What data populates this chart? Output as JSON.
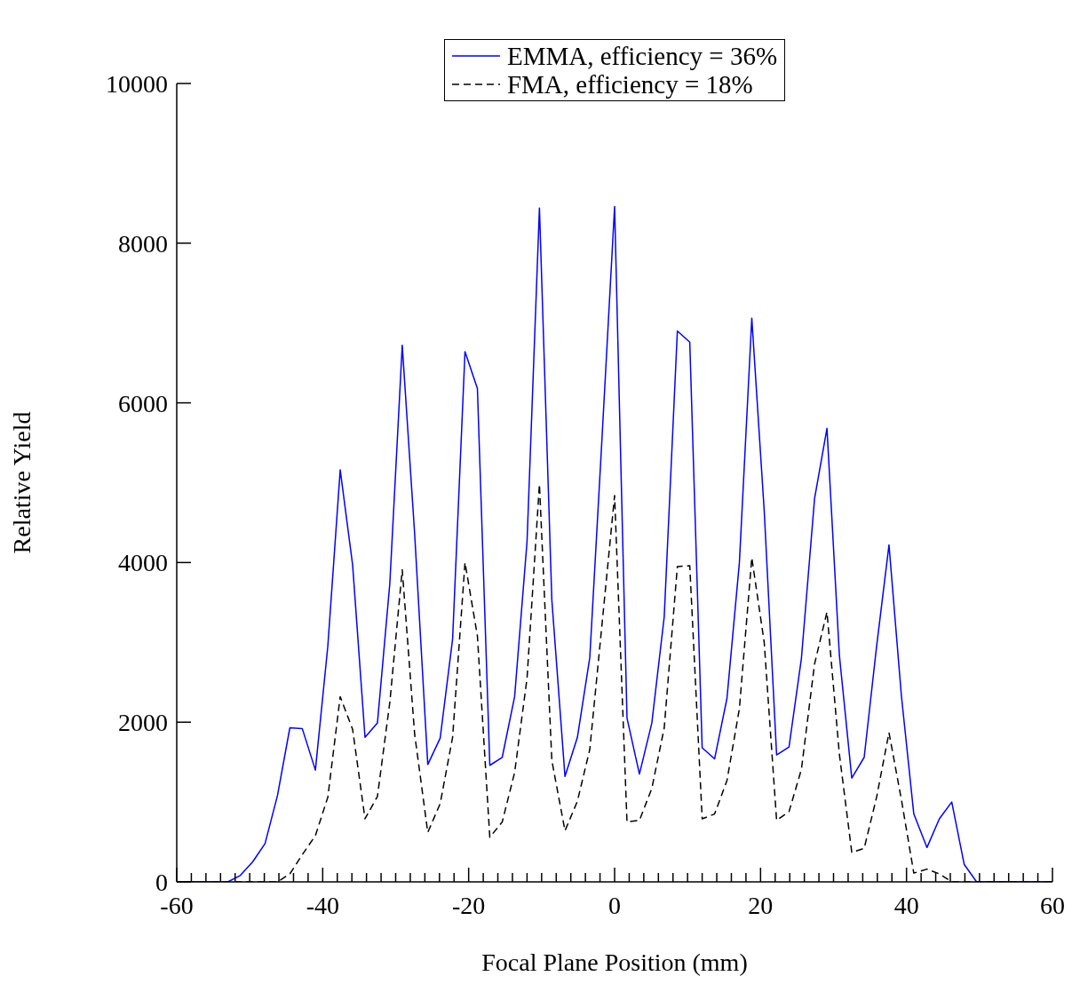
{
  "chart_data": {
    "type": "line",
    "xlabel": "Focal Plane Position (mm)",
    "ylabel": "Relative Yield",
    "x": [
      -60,
      -53.0,
      -51.3,
      -49.6,
      -47.9,
      -46.2,
      -44.5,
      -42.8,
      -41.0,
      -39.3,
      -37.6,
      -35.9,
      -34.2,
      -32.5,
      -30.8,
      -29.1,
      -27.4,
      -25.6,
      -23.9,
      -22.2,
      -20.5,
      -18.8,
      -17.1,
      -15.4,
      -13.7,
      -12.0,
      -10.3,
      -8.6,
      -6.8,
      -5.1,
      -3.4,
      -1.7,
      0,
      1.7,
      3.4,
      5.1,
      6.8,
      8.6,
      10.3,
      12.0,
      13.7,
      15.4,
      17.1,
      18.8,
      20.5,
      22.2,
      23.9,
      25.6,
      27.4,
      29.1,
      30.8,
      32.5,
      34.2,
      35.9,
      37.6,
      39.3,
      41.0,
      42.8,
      44.5,
      46.2,
      47.9,
      49.6,
      60
    ],
    "series": [
      {
        "name": "EMMA, efficiency = 36%",
        "color": "#0000ff",
        "line_style": "solid",
        "values": [
          0,
          0,
          80,
          250,
          480,
          1080,
          1930,
          1920,
          1400,
          2950,
          5160,
          3970,
          1810,
          1990,
          3740,
          6720,
          4360,
          1470,
          1800,
          3040,
          6640,
          6180,
          1460,
          1560,
          2320,
          4260,
          8440,
          3530,
          1320,
          1810,
          2810,
          5600,
          8460,
          2050,
          1350,
          1990,
          3320,
          6900,
          6760,
          1680,
          1540,
          2300,
          4000,
          7060,
          4650,
          1590,
          1690,
          2800,
          4800,
          5680,
          2840,
          1300,
          1560,
          2950,
          4220,
          2330,
          850,
          430,
          790,
          1000,
          220,
          0,
          0
        ]
      },
      {
        "name": "FMA, efficiency = 18%",
        "color": "#000000",
        "line_style": "dashed",
        "values": [
          0,
          0,
          0,
          0,
          0,
          0,
          100,
          340,
          580,
          1060,
          2320,
          1910,
          790,
          1070,
          2250,
          3910,
          1850,
          620,
          980,
          1810,
          4000,
          3080,
          560,
          750,
          1370,
          2550,
          4980,
          1520,
          640,
          1010,
          1660,
          3250,
          4840,
          750,
          770,
          1170,
          1930,
          3950,
          3960,
          790,
          850,
          1270,
          2170,
          4060,
          3000,
          770,
          880,
          1410,
          2730,
          3380,
          1600,
          370,
          420,
          1060,
          1870,
          1030,
          110,
          160,
          100,
          0,
          0,
          0,
          0
        ]
      }
    ],
    "xlim": [
      -60,
      60
    ],
    "ylim": [
      0,
      10000
    ],
    "xticks": [
      -60,
      {
        "value": -58,
        "label": null
      },
      {
        "value": -56,
        "label": null
      },
      {
        "value": -54,
        "label": null
      },
      {
        "value": -52,
        "label": null
      },
      {
        "value": -50,
        "label": null
      },
      {
        "value": -48,
        "label": null
      },
      {
        "value": -46,
        "label": null
      },
      {
        "value": -44,
        "label": null
      },
      {
        "value": -42,
        "label": null
      },
      -40,
      {
        "value": -38,
        "label": null
      },
      {
        "value": -36,
        "label": null
      },
      {
        "value": -34,
        "label": null
      },
      {
        "value": -32,
        "label": null
      },
      {
        "value": -30,
        "label": null
      },
      {
        "value": -28,
        "label": null
      },
      {
        "value": -26,
        "label": null
      },
      {
        "value": -24,
        "label": null
      },
      {
        "value": -22,
        "label": null
      },
      -20,
      {
        "value": -18,
        "label": null
      },
      {
        "value": -16,
        "label": null
      },
      {
        "value": -14,
        "label": null
      },
      {
        "value": -12,
        "label": null
      },
      {
        "value": -10,
        "label": null
      },
      {
        "value": -8,
        "label": null
      },
      {
        "value": -6,
        "label": null
      },
      {
        "value": -4,
        "label": null
      },
      {
        "value": -2,
        "label": null
      },
      0,
      {
        "value": 2,
        "label": null
      },
      {
        "value": 4,
        "label": null
      },
      {
        "value": 6,
        "label": null
      },
      {
        "value": 8,
        "label": null
      },
      {
        "value": 10,
        "label": null
      },
      {
        "value": 12,
        "label": null
      },
      {
        "value": 14,
        "label": null
      },
      {
        "value": 16,
        "label": null
      },
      {
        "value": 18,
        "label": null
      },
      20,
      {
        "value": 22,
        "label": null
      },
      {
        "value": 24,
        "label": null
      },
      {
        "value": 26,
        "label": null
      },
      {
        "value": 28,
        "label": null
      },
      {
        "value": 30,
        "label": null
      },
      {
        "value": 32,
        "label": null
      },
      {
        "value": 34,
        "label": null
      },
      {
        "value": 36,
        "label": null
      },
      {
        "value": 38,
        "label": null
      },
      40,
      {
        "value": 42,
        "label": null
      },
      {
        "value": 44,
        "label": null
      },
      {
        "value": 46,
        "label": null
      },
      {
        "value": 48,
        "label": null
      },
      {
        "value": 50,
        "label": null
      },
      {
        "value": 52,
        "label": null
      },
      {
        "value": 54,
        "label": null
      },
      {
        "value": 56,
        "label": null
      },
      {
        "value": 58,
        "label": null
      },
      60
    ],
    "yticks": [
      0,
      2000,
      4000,
      6000,
      8000,
      10000
    ],
    "grid": false,
    "legend": "top"
  }
}
